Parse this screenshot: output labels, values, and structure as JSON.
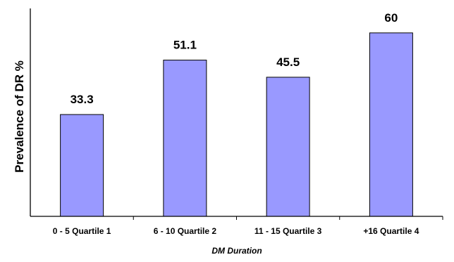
{
  "chart_data": {
    "type": "bar",
    "categories": [
      "0 - 5 Quartile 1",
      "6 - 10 Quartile 2",
      "11 - 15 Quartile 3",
      "+16 Quartile 4"
    ],
    "values": [
      33.3,
      51.1,
      45.5,
      60
    ],
    "value_labels": [
      "33.3",
      "51.1",
      "45.5",
      "60"
    ],
    "title": "",
    "xlabel": "DM Duration",
    "ylabel": "Prevalence of DR  %",
    "ylim": [
      0,
      68
    ],
    "grid": false,
    "legend": "none",
    "bar_color": "#9999ff",
    "bar_edge_color": "#000000"
  }
}
